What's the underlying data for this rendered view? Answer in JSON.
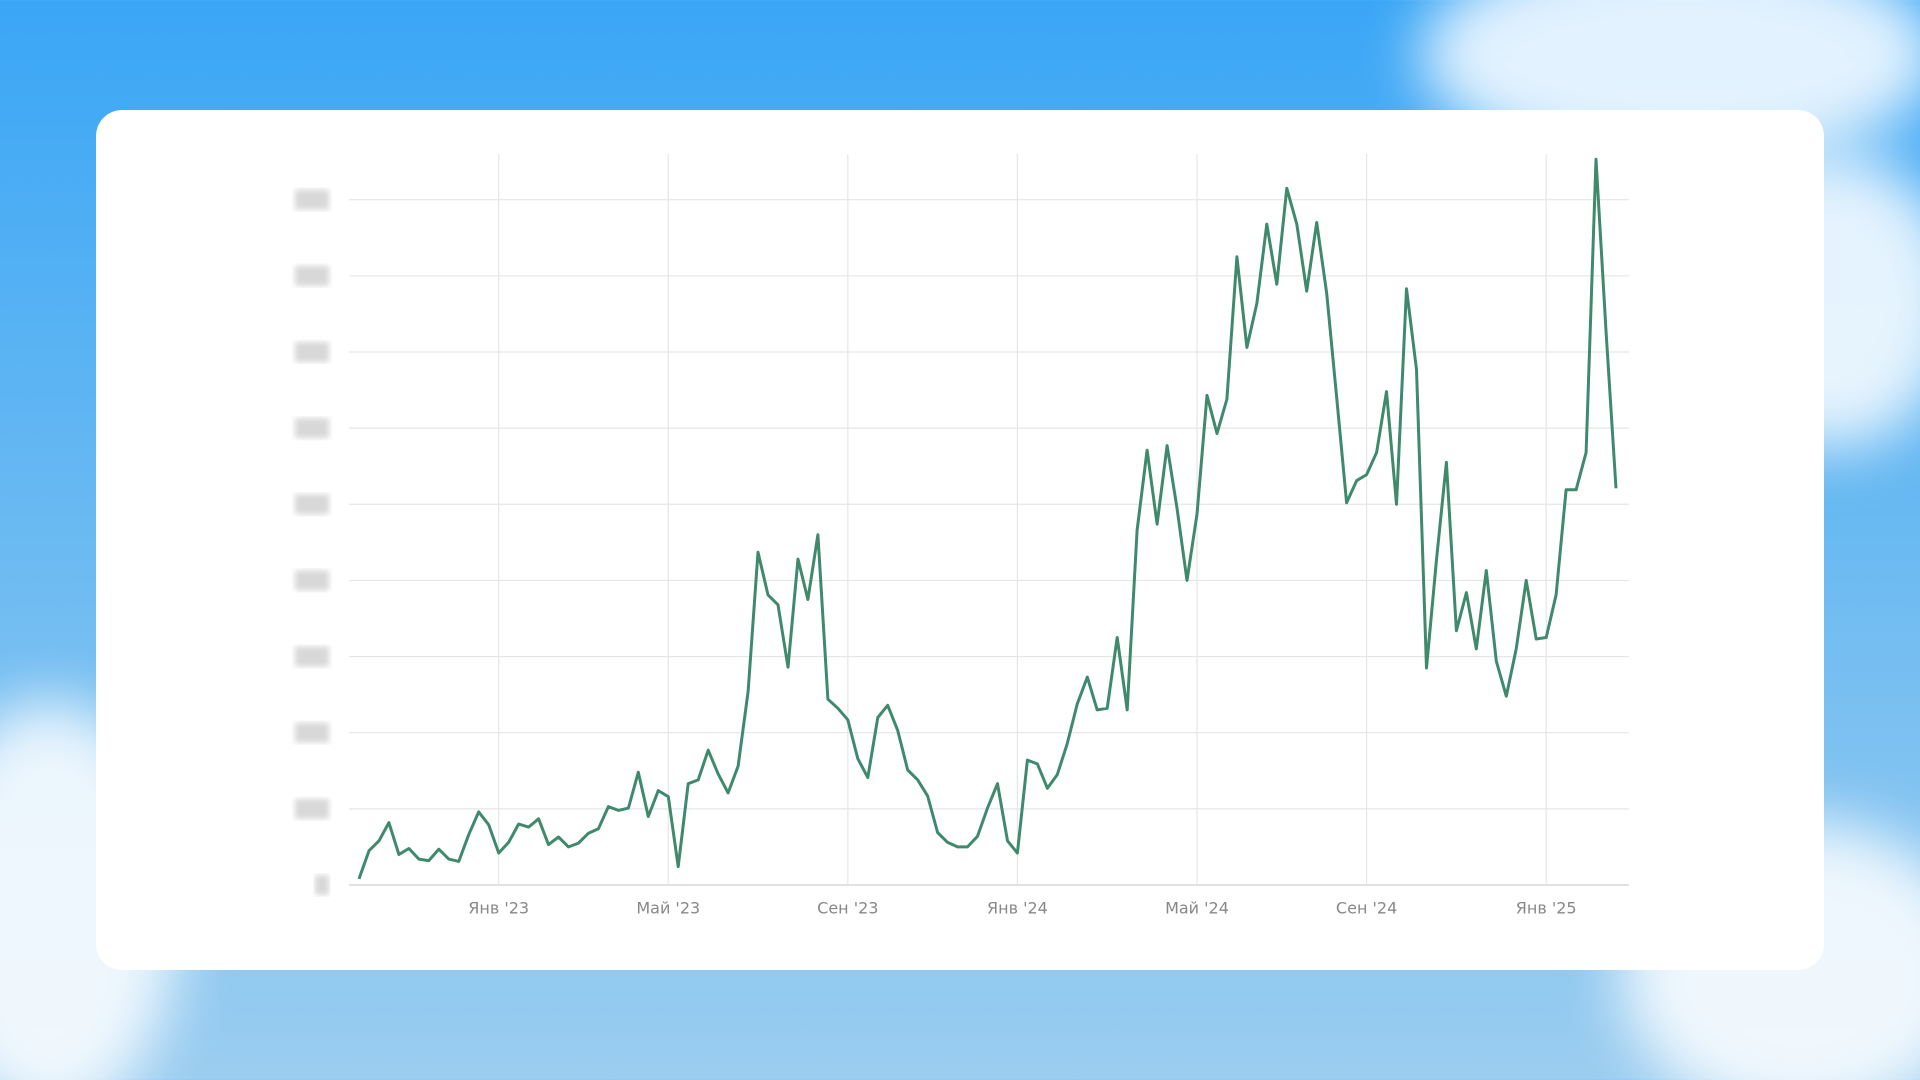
{
  "chart_data": {
    "type": "line",
    "categories": [
      null,
      null,
      null,
      null,
      null,
      null,
      null,
      null,
      null,
      null,
      null,
      null,
      null,
      null,
      "Янв '23",
      null,
      null,
      null,
      null,
      null,
      null,
      null,
      null,
      null,
      null,
      null,
      null,
      null,
      null,
      null,
      null,
      "Май '23",
      null,
      null,
      null,
      null,
      null,
      null,
      null,
      null,
      null,
      null,
      null,
      null,
      null,
      null,
      null,
      null,
      null,
      "Сен '23",
      null,
      null,
      null,
      null,
      null,
      null,
      null,
      null,
      null,
      null,
      null,
      null,
      null,
      null,
      null,
      null,
      "Янв '24",
      null,
      null,
      null,
      null,
      null,
      null,
      null,
      null,
      null,
      null,
      null,
      null,
      null,
      null,
      null,
      null,
      null,
      "Май '24",
      null,
      null,
      null,
      null,
      null,
      null,
      null,
      null,
      null,
      null,
      null,
      null,
      null,
      null,
      null,
      null,
      "Сен '24",
      null,
      null,
      null,
      null,
      null,
      null,
      null,
      null,
      null,
      null,
      null,
      null,
      null,
      null,
      null,
      null,
      null,
      "Янв '25",
      null,
      null,
      null,
      null,
      null,
      null,
      null
    ],
    "values": [
      0.08,
      0.45,
      0.58,
      0.82,
      0.4,
      0.48,
      0.34,
      0.32,
      0.47,
      0.34,
      0.31,
      0.66,
      0.96,
      0.79,
      0.42,
      0.56,
      0.8,
      0.76,
      0.87,
      0.53,
      0.63,
      0.5,
      0.55,
      0.68,
      0.74,
      1.03,
      0.98,
      1.01,
      1.48,
      0.9,
      1.24,
      1.16,
      0.24,
      1.33,
      1.38,
      1.77,
      1.46,
      1.21,
      1.56,
      2.54,
      4.37,
      3.81,
      3.68,
      2.86,
      4.28,
      3.75,
      4.6,
      2.44,
      2.32,
      2.17,
      1.66,
      1.41,
      2.2,
      2.36,
      2.03,
      1.51,
      1.38,
      1.17,
      0.69,
      0.56,
      0.5,
      0.5,
      0.64,
      1.01,
      1.33,
      0.58,
      0.42,
      1.64,
      1.59,
      1.27,
      1.45,
      1.86,
      2.38,
      2.73,
      2.3,
      2.32,
      3.25,
      2.3,
      4.66,
      5.71,
      4.74,
      5.77,
      4.95,
      4.0,
      4.87,
      6.43,
      5.93,
      6.38,
      8.25,
      7.06,
      7.64,
      8.68,
      7.89,
      9.15,
      8.68,
      7.8,
      8.7,
      7.77,
      6.4,
      5.02,
      5.31,
      5.39,
      5.68,
      6.48,
      5.0,
      7.83,
      6.77,
      2.85,
      4.26,
      5.55,
      3.34,
      3.84,
      3.1,
      4.13,
      2.94,
      2.48,
      3.1,
      4.0,
      3.23,
      3.25,
      3.81,
      5.19,
      5.19,
      5.68,
      9.53,
      7.28,
      5.21
    ],
    "color": "#3f8a6d",
    "ylim": [
      0,
      9.6
    ],
    "yticks": [
      0,
      1,
      2,
      3,
      4,
      5,
      6,
      7,
      8,
      9
    ],
    "grid": true
  }
}
